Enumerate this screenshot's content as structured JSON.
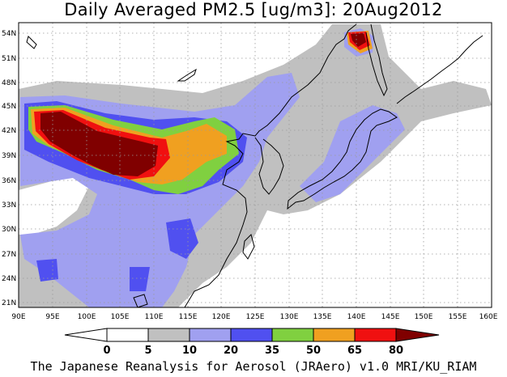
{
  "title": "Daily Averaged PM2.5 [ug/m3]: 20Aug2012",
  "footer": "The Japanese Reanalysis for Aerosol (JRAero) v1.0 MRI/KU_RIAM",
  "map": {
    "lon_range": [
      90,
      160
    ],
    "lat_range": [
      20,
      55
    ],
    "lat_ticks": [
      "54N",
      "51N",
      "48N",
      "45N",
      "42N",
      "39N",
      "36N",
      "33N",
      "30N",
      "27N",
      "24N",
      "21N"
    ],
    "lon_ticks": [
      "90E",
      "95E",
      "100E",
      "105E",
      "110E",
      "115E",
      "120E",
      "125E",
      "130E",
      "135E",
      "140E",
      "145E",
      "150E",
      "155E",
      "160E"
    ]
  },
  "colorbar": {
    "levels": [
      "0",
      "5",
      "10",
      "20",
      "35",
      "50",
      "65",
      "80"
    ],
    "colors": [
      "#ffffff",
      "#c0c0c0",
      "#a0a0f0",
      "#5050f0",
      "#80d040",
      "#f0a020",
      "#f01010",
      "#800000"
    ]
  }
}
